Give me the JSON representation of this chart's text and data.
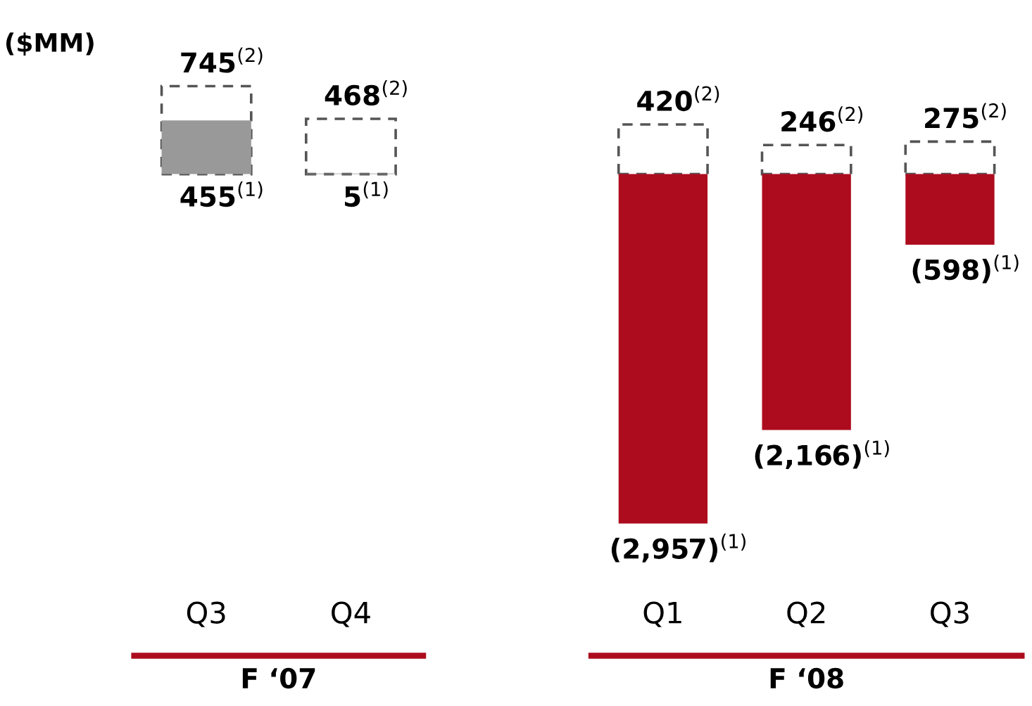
{
  "chart_data": [
    {
      "type": "bar",
      "title": "($MM)",
      "xlabel": "F ‘07",
      "categories": [
        "Q3",
        "Q4"
      ],
      "series": [
        {
          "line_style": "dashed",
          "colors": [
            "#555555",
            "#555555"
          ],
          "values": [
            745,
            468
          ],
          "value_labels": [
            "745$^{(2)}$",
            "468$^{(2)}$"
          ]
        },
        {
          "colors": [
            "#999999",
            "#999999"
          ],
          "values": [
            455,
            5
          ],
          "value_labels": [
            "455$^{(1)}$",
            "5$^{(1)}$"
          ]
        }
      ]
    },
    {
      "type": "bar",
      "xlabel": "F ‘08",
      "categories": [
        "Q1",
        "Q2",
        "Q3"
      ],
      "series": [
        {
          "line_style": "dashed",
          "colors": [
            "#555555",
            "#555555",
            "#555555"
          ],
          "values": [
            420,
            246,
            275
          ],
          "value_labels": [
            "420$^{(2)}$",
            "246$^{(2)}$",
            "275$^{(2)}$"
          ]
        },
        {
          "colors": [
            "#ad0c1e",
            "#ad0c1e",
            "#ad0c1e"
          ],
          "values": [
            -2957,
            -2166,
            -598
          ],
          "value_labels": [
            "(2,957)$^{(1)}$",
            "(2,166)$^{(1)}$",
            "(598)$^{(1)}$"
          ]
        }
      ]
    }
  ]
}
